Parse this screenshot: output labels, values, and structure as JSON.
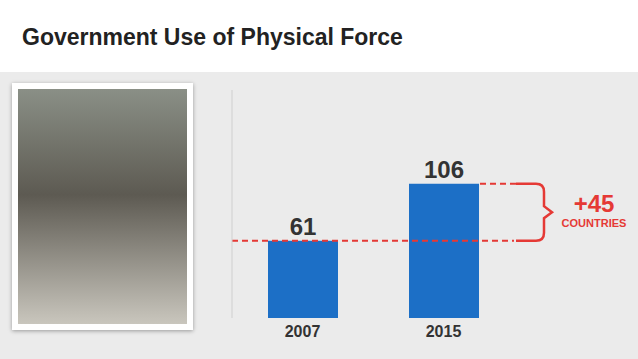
{
  "chart_data": {
    "type": "bar",
    "title": "Government Use of Physical Force",
    "categories": [
      "2007",
      "2015"
    ],
    "values": [
      61,
      106
    ],
    "color": "#1c6fc6",
    "ylim": [
      0,
      180
    ],
    "data_labels": true,
    "tick_labels": "x",
    "annotations": [
      "+45",
      "COUNTRIES"
    ]
  }
}
